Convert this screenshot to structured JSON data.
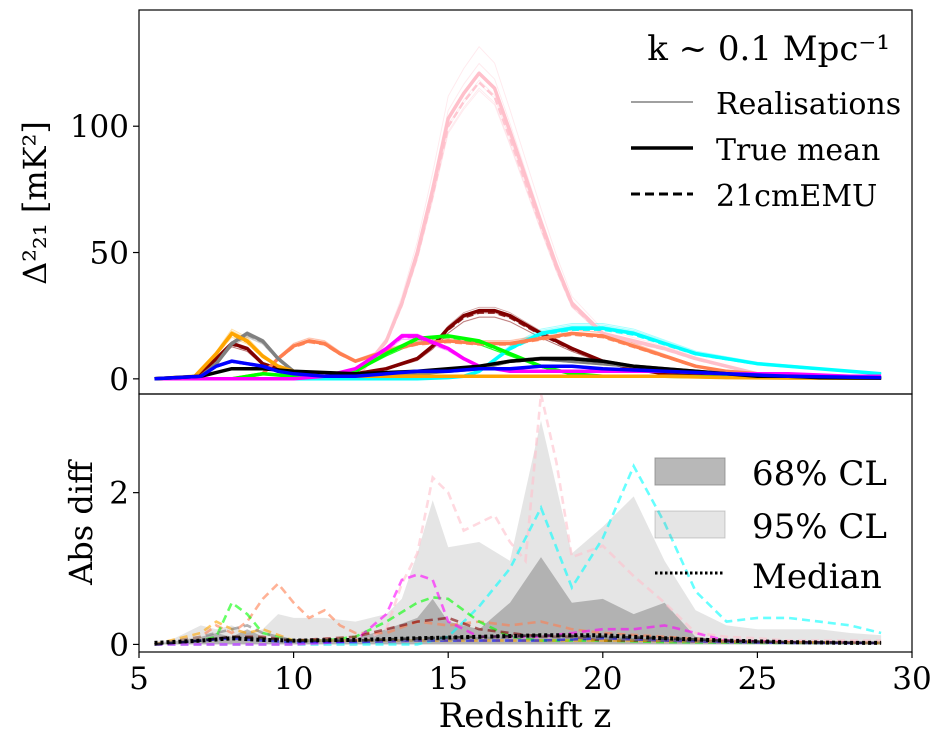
{
  "chart_data": [
    {
      "type": "line",
      "title": "",
      "annotation": "k ~ 0.1 Mpc⁻¹",
      "xlabel": "",
      "ylabel": "Δ²₂₁ [mK²]",
      "xlim": [
        5,
        30
      ],
      "ylim": [
        -6,
        146
      ],
      "yticks": [
        0,
        50,
        100
      ],
      "legend": {
        "position": "top-right",
        "entries": [
          {
            "label": "Realisations",
            "style": "thin"
          },
          {
            "label": "True mean",
            "style": "solid"
          },
          {
            "label": "21cmEMU",
            "style": "dashed"
          }
        ]
      },
      "series": [
        {
          "color": "#ffc0cb",
          "x": [
            5.5,
            12,
            13,
            13.5,
            14,
            14.5,
            15,
            15.5,
            16,
            16.5,
            17,
            17.5,
            18,
            18.5,
            19,
            20,
            21,
            22,
            23,
            24,
            25,
            26
          ],
          "y": [
            0,
            0,
            15,
            30,
            50,
            75,
            103,
            113,
            121,
            115,
            98,
            80,
            62,
            45,
            30,
            18,
            15,
            12,
            8,
            5,
            2,
            1
          ]
        },
        {
          "color": "#800000",
          "x": [
            5.5,
            6.8,
            7.5,
            8,
            8.5,
            9,
            10,
            11,
            12,
            13,
            14,
            14.5,
            15,
            15.5,
            16,
            16.5,
            17,
            18,
            19,
            20,
            21,
            22,
            24,
            26,
            29
          ],
          "y": [
            0,
            0,
            8,
            14,
            12,
            6,
            2,
            1,
            2,
            4,
            8,
            13,
            20,
            25,
            27,
            27,
            25,
            18,
            12,
            7,
            4,
            2,
            1,
            0.5,
            0.3
          ]
        },
        {
          "color": "#00ffff",
          "x": [
            5.5,
            14,
            15,
            15.5,
            16,
            17,
            18,
            19,
            20,
            21,
            22,
            23,
            24,
            25,
            26,
            27,
            28,
            29
          ],
          "y": [
            0,
            0,
            0.5,
            1,
            3,
            12,
            18,
            20,
            20,
            18,
            14,
            10,
            8,
            6,
            5,
            4,
            3,
            2
          ]
        },
        {
          "color": "#ff7f50",
          "x": [
            5.5,
            8,
            9,
            9.5,
            10,
            10.5,
            11,
            11.5,
            12,
            13,
            14,
            15,
            16,
            17,
            18,
            19,
            20,
            21,
            22,
            23,
            24,
            25,
            26,
            27
          ],
          "y": [
            0,
            0,
            2,
            8,
            13,
            15,
            14,
            10,
            7,
            11,
            14,
            15,
            14,
            14,
            16,
            18,
            17,
            13,
            9,
            5,
            3,
            2,
            1,
            0.5
          ]
        },
        {
          "color": "#00ff00",
          "x": [
            5.5,
            8,
            9,
            10,
            11,
            12,
            13,
            14,
            15,
            16,
            17,
            18,
            19,
            20,
            22,
            25,
            29
          ],
          "y": [
            0,
            0,
            2,
            1,
            1,
            3,
            10,
            16,
            17,
            15,
            10,
            5,
            2,
            1,
            1,
            0.5,
            0.3
          ]
        },
        {
          "color": "#ff00ff",
          "x": [
            5.5,
            8,
            10,
            11,
            12,
            13,
            13.5,
            14,
            15,
            15.5,
            16,
            17,
            18,
            19,
            20,
            21,
            22,
            24,
            26,
            28,
            29
          ],
          "y": [
            0,
            0,
            0,
            1,
            4,
            12,
            17,
            17,
            12,
            8,
            5,
            3,
            3,
            3,
            3,
            3,
            3,
            2,
            2,
            1,
            1
          ]
        },
        {
          "color": "#808080",
          "x": [
            5.5,
            7,
            7.5,
            8,
            8.5,
            9,
            9.5,
            10,
            11,
            12,
            14,
            16,
            17,
            18,
            19,
            20,
            21,
            22,
            24,
            26,
            28,
            29
          ],
          "y": [
            0,
            1,
            6,
            14,
            18,
            15,
            8,
            3,
            1,
            1,
            2,
            4,
            7,
            8,
            7,
            6,
            5,
            4,
            2,
            1,
            0.5,
            0.3
          ]
        },
        {
          "color": "#ffa500",
          "x": [
            5.5,
            6.8,
            7.5,
            8,
            8.5,
            9,
            9.5,
            10,
            11,
            12,
            14,
            16,
            18,
            20,
            22,
            24,
            26,
            29
          ],
          "y": [
            0,
            1,
            10,
            18,
            15,
            9,
            5,
            3,
            1,
            1,
            1,
            1,
            1,
            1,
            1,
            0.5,
            0.3,
            0.2
          ]
        },
        {
          "color": "#000000",
          "x": [
            5.5,
            7,
            8,
            9,
            10,
            12,
            14,
            16,
            17,
            18,
            19,
            20,
            21,
            22,
            23,
            24,
            25,
            26,
            27,
            29
          ],
          "y": [
            0,
            1,
            4,
            4,
            3,
            2,
            3,
            5,
            7,
            8,
            8,
            7,
            5,
            4,
            3,
            2,
            1,
            1,
            0.5,
            0.3
          ]
        },
        {
          "color": "#0000ff",
          "x": [
            5.5,
            7,
            7.5,
            8,
            8.5,
            9,
            9.5,
            10,
            11,
            12,
            13,
            14,
            15,
            16,
            17,
            18,
            19,
            20,
            22,
            24,
            26,
            29
          ],
          "y": [
            0,
            1,
            5,
            7,
            6,
            5,
            3,
            2,
            1,
            1,
            2,
            3,
            3,
            4,
            4,
            5,
            5,
            4,
            3,
            2,
            1,
            0.5
          ]
        }
      ]
    },
    {
      "type": "area",
      "title": "",
      "xlabel": "Redshift z",
      "ylabel": "Abs diff",
      "xlim": [
        5,
        30
      ],
      "ylim": [
        -0.1,
        3.3
      ],
      "xticks": [
        5,
        10,
        15,
        20,
        25,
        30
      ],
      "yticks": [
        0,
        2
      ],
      "legend": {
        "position": "top-right",
        "entries": [
          {
            "label": "68% CL",
            "style": "band-dark"
          },
          {
            "label": "95% CL",
            "style": "band-light"
          },
          {
            "label": "Median",
            "style": "dotted"
          }
        ]
      },
      "band68": {
        "x": [
          5.5,
          6,
          7,
          7.5,
          8,
          8.5,
          9,
          9.5,
          10,
          11,
          12,
          13,
          14,
          14.5,
          15,
          16,
          17,
          18,
          19,
          20,
          21,
          22,
          23,
          24,
          25,
          26,
          27,
          28,
          29
        ],
        "low": [
          0,
          0,
          0,
          0,
          0,
          0,
          0,
          0,
          0,
          0,
          0,
          0,
          0,
          0,
          0,
          0,
          0,
          0,
          0,
          0,
          0,
          0,
          0,
          0,
          0,
          0,
          0,
          0,
          0
        ],
        "high": [
          0.02,
          0.03,
          0.1,
          0.15,
          0.1,
          0.2,
          0.1,
          0.05,
          0.05,
          0.05,
          0.08,
          0.2,
          0.35,
          0.6,
          0.3,
          0.2,
          0.55,
          1.15,
          0.55,
          0.6,
          0.4,
          0.55,
          0.1,
          0.05,
          0.03,
          0.03,
          0.03,
          0.03,
          0.03
        ]
      },
      "band95": {
        "x": [
          5.5,
          6,
          7,
          7.5,
          8,
          8.5,
          9,
          9.5,
          10,
          11,
          12,
          13,
          13.5,
          14,
          14.5,
          15,
          16,
          17,
          18,
          19,
          20,
          21,
          22,
          23,
          24,
          25,
          26,
          27,
          28,
          29
        ],
        "low": [
          0,
          0,
          0,
          0,
          0,
          0,
          0,
          0,
          0,
          0,
          0,
          0,
          0,
          0,
          0,
          0,
          0,
          0,
          0,
          0,
          0,
          0,
          0,
          0,
          0,
          0,
          0,
          0,
          0,
          0
        ],
        "high": [
          0.05,
          0.05,
          0.25,
          0.2,
          0.25,
          0.15,
          0.2,
          0.4,
          0.35,
          0.35,
          0.3,
          0.4,
          0.6,
          1.2,
          1.9,
          1.28,
          1.35,
          1.1,
          2.95,
          1.2,
          1.55,
          1.95,
          1.1,
          0.45,
          0.25,
          0.2,
          0.2,
          0.2,
          0.15,
          0.12
        ]
      },
      "median": {
        "x": [
          5.5,
          7,
          8,
          9,
          10,
          12,
          14,
          16,
          18,
          20,
          22,
          24,
          26,
          28,
          29
        ],
        "y": [
          0.02,
          0.05,
          0.08,
          0.06,
          0.05,
          0.06,
          0.08,
          0.1,
          0.12,
          0.12,
          0.08,
          0.05,
          0.03,
          0.02,
          0.02
        ]
      },
      "series": [
        {
          "color": "#ffc0cb",
          "x": [
            5.5,
            12,
            13,
            13.5,
            14,
            14.5,
            15,
            15.5,
            16,
            16.5,
            17,
            17.5,
            18,
            18.5,
            19,
            20,
            21,
            22,
            23,
            24,
            25,
            26,
            28,
            29
          ],
          "y": [
            0,
            0,
            0.2,
            0.8,
            1.2,
            2.2,
            2.0,
            1.5,
            1.6,
            1.7,
            1.35,
            1.1,
            3.3,
            2.4,
            1.15,
            1.3,
            0.9,
            0.55,
            0.15,
            0.1,
            0.08,
            0.05,
            0.05,
            0.05
          ]
        },
        {
          "color": "#00ffff",
          "x": [
            5.5,
            14,
            15,
            16,
            17,
            18,
            19,
            20,
            21,
            22,
            23,
            24,
            25,
            26,
            27,
            28,
            29
          ],
          "y": [
            0,
            0,
            0.1,
            0.5,
            1.0,
            1.8,
            0.75,
            1.4,
            2.35,
            1.6,
            0.7,
            0.3,
            0.35,
            0.35,
            0.3,
            0.25,
            0.15
          ]
        },
        {
          "color": "#ff7f50",
          "x": [
            5.5,
            7,
            7.5,
            8,
            8.5,
            9,
            9.5,
            10,
            10.5,
            11,
            11.5,
            12,
            13,
            14,
            15,
            16,
            17,
            18,
            19,
            20,
            22,
            24,
            26
          ],
          "y": [
            0,
            0.1,
            0.25,
            0.15,
            0.3,
            0.6,
            0.8,
            0.55,
            0.35,
            0.45,
            0.25,
            0.15,
            0.15,
            0.3,
            0.25,
            0.3,
            0.25,
            0.3,
            0.2,
            0.15,
            0.1,
            0.05,
            0.03
          ]
        },
        {
          "color": "#00ff00",
          "x": [
            5.5,
            7,
            7.5,
            8,
            8.5,
            9,
            10,
            11,
            12,
            13,
            14,
            14.5,
            15,
            16,
            17,
            18,
            20,
            22,
            25,
            29
          ],
          "y": [
            0,
            0.05,
            0.1,
            0.55,
            0.4,
            0.15,
            0.05,
            0.05,
            0.1,
            0.3,
            0.55,
            0.62,
            0.6,
            0.3,
            0.1,
            0.05,
            0.05,
            0.03,
            0.02,
            0.02
          ]
        },
        {
          "color": "#ff00ff",
          "x": [
            5.5,
            10,
            11,
            12,
            13,
            13.5,
            14,
            14.5,
            15,
            16,
            17,
            18,
            19,
            20,
            21,
            22,
            24,
            26,
            29
          ],
          "y": [
            0,
            0,
            0.02,
            0.05,
            0.4,
            0.85,
            0.92,
            0.85,
            0.3,
            0.1,
            0.1,
            0.1,
            0.15,
            0.2,
            0.2,
            0.25,
            0.05,
            0.03,
            0.02
          ]
        },
        {
          "color": "#800000",
          "x": [
            5.5,
            7,
            8,
            9,
            10,
            12,
            13,
            14,
            15,
            16,
            17,
            18,
            19,
            20,
            22,
            25,
            29
          ],
          "y": [
            0,
            0.05,
            0.1,
            0.1,
            0.05,
            0.1,
            0.2,
            0.3,
            0.35,
            0.2,
            0.15,
            0.1,
            0.1,
            0.05,
            0.05,
            0.03,
            0.02
          ]
        },
        {
          "color": "#ffa500",
          "x": [
            5.5,
            7,
            7.5,
            8,
            8.5,
            9,
            10,
            12,
            15,
            18,
            21,
            24,
            29
          ],
          "y": [
            0,
            0.15,
            0.3,
            0.2,
            0.15,
            0.2,
            0.05,
            0.05,
            0.05,
            0.05,
            0.05,
            0.03,
            0.02
          ]
        },
        {
          "color": "#0000ff",
          "x": [
            5.5,
            7,
            8,
            9,
            10,
            12,
            14,
            16,
            18,
            20,
            22,
            24,
            26,
            29
          ],
          "y": [
            0,
            0.05,
            0.08,
            0.05,
            0.03,
            0.03,
            0.05,
            0.05,
            0.05,
            0.08,
            0.05,
            0.03,
            0.02,
            0.02
          ]
        },
        {
          "color": "#808080",
          "x": [
            5.5,
            7,
            8,
            8.5,
            9,
            10,
            12,
            14,
            16,
            18,
            20,
            22,
            24,
            26,
            29
          ],
          "y": [
            0,
            0.1,
            0.2,
            0.25,
            0.15,
            0.05,
            0.05,
            0.05,
            0.08,
            0.1,
            0.08,
            0.05,
            0.03,
            0.02,
            0.02
          ]
        },
        {
          "color": "#000000",
          "x": [
            5.5,
            7,
            8,
            9,
            10,
            12,
            14,
            16,
            18,
            20,
            22,
            24,
            26,
            29
          ],
          "y": [
            0,
            0.05,
            0.1,
            0.08,
            0.05,
            0.05,
            0.08,
            0.1,
            0.12,
            0.1,
            0.08,
            0.05,
            0.03,
            0.02
          ]
        }
      ]
    }
  ]
}
